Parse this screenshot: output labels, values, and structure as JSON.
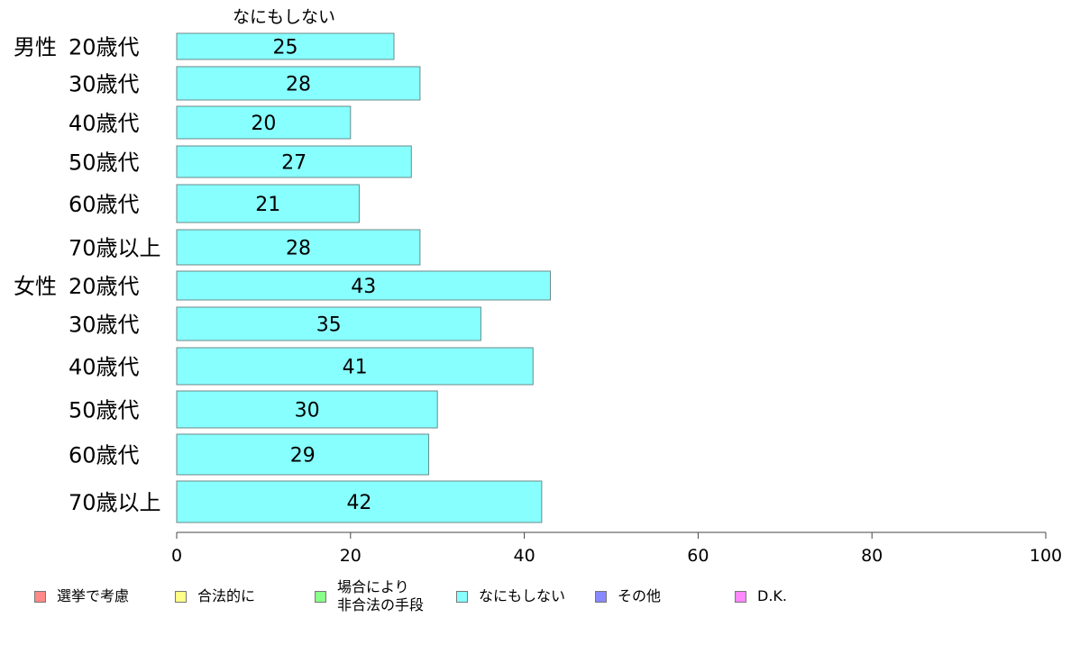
{
  "chart_data": {
    "type": "bar",
    "orientation": "horizontal",
    "title": "なにもしない",
    "groups": [
      {
        "label": "男性",
        "start_index": 0
      },
      {
        "label": "女性",
        "start_index": 6
      }
    ],
    "categories": [
      "20歳代",
      "30歳代",
      "40歳代",
      "50歳代",
      "60歳代",
      "70歳以上",
      "20歳代",
      "30歳代",
      "40歳代",
      "50歳代",
      "60歳代",
      "70歳以上"
    ],
    "series": [
      {
        "name": "なにもしない",
        "color": "#88ffff",
        "values": [
          25,
          28,
          20,
          27,
          21,
          28,
          43,
          35,
          41,
          30,
          29,
          42
        ]
      }
    ],
    "xlim": [
      0,
      100
    ],
    "xticks": [
      0,
      20,
      40,
      60,
      80,
      100
    ],
    "grid": false,
    "legend_position": "bottom",
    "legend": [
      {
        "label": "選挙で考慮",
        "color": "#ff8888"
      },
      {
        "label": "合法的に",
        "color": "#ffff88"
      },
      {
        "label": "場合により\n非合法の手段",
        "color": "#88ff88"
      },
      {
        "label": "なにもしない",
        "color": "#88ffff"
      },
      {
        "label": "その他",
        "color": "#8888ff"
      },
      {
        "label": "D.K.",
        "color": "#ff88ff"
      }
    ]
  }
}
